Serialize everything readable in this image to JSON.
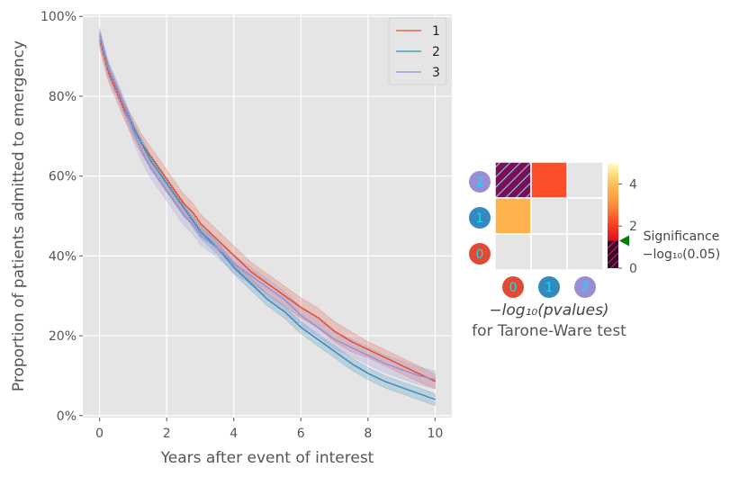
{
  "chart_data": [
    {
      "type": "line",
      "subtype": "kaplan-meier step curves with confidence bands",
      "xlabel": "Years after event of interest",
      "ylabel": "Proportion of patients admitted to emergency",
      "xlim": [
        -0.5,
        10.5
      ],
      "ylim": [
        -0.005,
        1.005
      ],
      "xticks": [
        0,
        2,
        4,
        6,
        8,
        10
      ],
      "xtick_labels": [
        "0",
        "2",
        "4",
        "6",
        "8",
        "10"
      ],
      "yticks": [
        0,
        0.2,
        0.4,
        0.6,
        0.8,
        1.0
      ],
      "ytick_labels": [
        "0%",
        "20%",
        "40%",
        "60%",
        "80%",
        "100%"
      ],
      "grid": true,
      "legend_position": "top-right",
      "x": [
        0,
        0.25,
        0.5,
        0.75,
        1,
        1.25,
        1.5,
        1.75,
        2,
        2.25,
        2.5,
        2.75,
        3,
        3.5,
        4,
        4.5,
        5,
        5.5,
        6,
        6.5,
        7,
        7.5,
        8,
        8.5,
        9,
        9.5,
        10
      ],
      "series": [
        {
          "name": "1",
          "color": "#E24A33",
          "values": [
            0.94,
            0.86,
            0.81,
            0.76,
            0.72,
            0.68,
            0.65,
            0.62,
            0.59,
            0.56,
            0.53,
            0.51,
            0.48,
            0.44,
            0.4,
            0.36,
            0.33,
            0.3,
            0.27,
            0.245,
            0.21,
            0.185,
            0.165,
            0.145,
            0.125,
            0.105,
            0.085
          ],
          "ci_halfwidth": [
            0.02,
            0.02,
            0.02,
            0.02,
            0.025,
            0.025,
            0.025,
            0.025,
            0.025,
            0.025,
            0.025,
            0.025,
            0.025,
            0.025,
            0.025,
            0.025,
            0.025,
            0.025,
            0.025,
            0.025,
            0.025,
            0.025,
            0.02,
            0.02,
            0.02,
            0.02,
            0.018
          ]
        },
        {
          "name": "2",
          "color": "#348ABD",
          "values": [
            0.95,
            0.87,
            0.82,
            0.77,
            0.72,
            0.68,
            0.64,
            0.61,
            0.58,
            0.55,
            0.52,
            0.49,
            0.46,
            0.42,
            0.37,
            0.33,
            0.29,
            0.26,
            0.22,
            0.19,
            0.16,
            0.13,
            0.105,
            0.085,
            0.07,
            0.055,
            0.04
          ]
        },
        {
          "name": "3",
          "color": "#988ED5",
          "values": [
            0.95,
            0.87,
            0.82,
            0.77,
            0.71,
            0.66,
            0.62,
            0.59,
            0.56,
            0.53,
            0.5,
            0.48,
            0.45,
            0.42,
            0.38,
            0.35,
            0.32,
            0.29,
            0.25,
            0.22,
            0.19,
            0.17,
            0.15,
            0.13,
            0.115,
            0.1,
            0.09
          ]
        }
      ]
    },
    {
      "type": "heatmap",
      "xlabel_line1": "−log₁₀(pvalues)",
      "xlabel_line2": "for Tarone-Ware test",
      "x_categories": [
        "0",
        "1",
        "2"
      ],
      "y_categories": [
        "0",
        "1",
        "2"
      ],
      "category_colors": {
        "0": "#E24A33",
        "1": "#348ABD",
        "2": "#988ED5"
      },
      "cells": [
        {
          "row": "2",
          "col": "0",
          "value": 0.8,
          "hatched": true
        },
        {
          "row": "2",
          "col": "1",
          "value": 1.8
        },
        {
          "row": "1",
          "col": "0",
          "value": 3.4
        }
      ],
      "colorbar": {
        "range": [
          0,
          5
        ],
        "ticks": [
          0,
          2,
          4
        ],
        "tick_labels": [
          "0",
          "2",
          "4"
        ],
        "threshold": 1.301,
        "threshold_label_line1": "Significance",
        "threshold_label_line2": "−log₁₀(0.05)",
        "marker_color": "#008000"
      }
    }
  ]
}
